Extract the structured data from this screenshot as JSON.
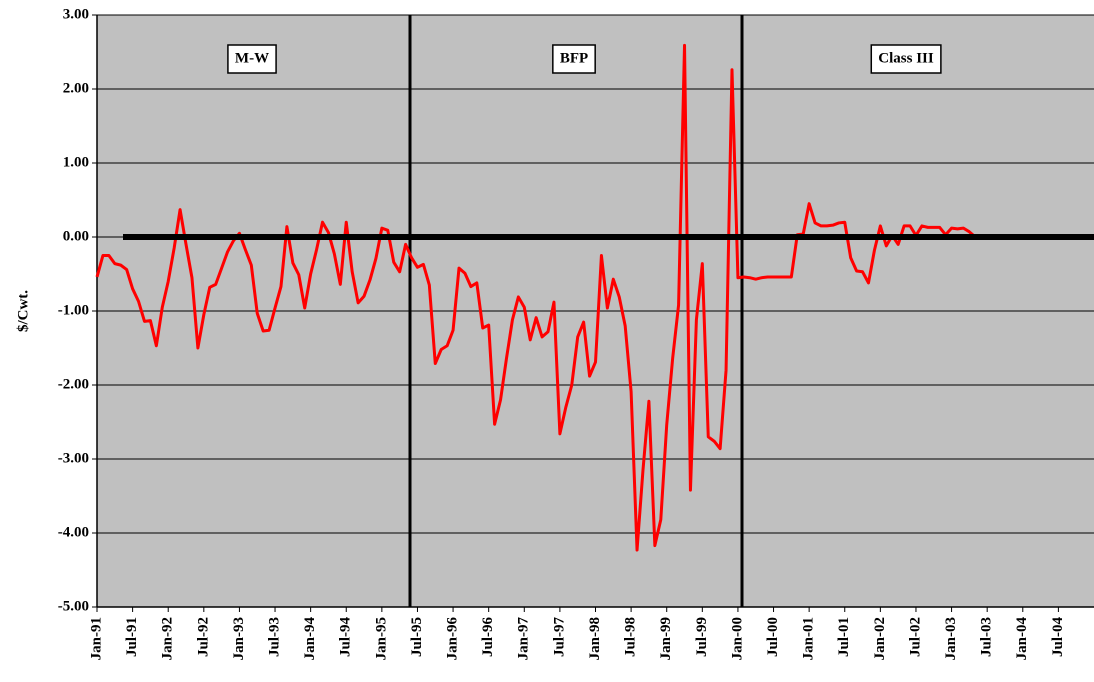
{
  "chart_data": {
    "type": "line",
    "y_label": "$/Cwt.",
    "annotations": [
      "M-W",
      "BFP",
      "Class III"
    ],
    "color": "#ff0000",
    "grid": true,
    "ylim": [
      -5,
      3
    ],
    "yticks": [
      {
        "value": 3,
        "label": "3.00"
      },
      {
        "value": 2,
        "label": "2.00"
      },
      {
        "value": 1,
        "label": "1.00"
      },
      {
        "value": 0,
        "label": "0.00"
      },
      {
        "value": -1,
        "label": "-1.00"
      },
      {
        "value": -2,
        "label": "-2.00"
      },
      {
        "value": -3,
        "label": "-3.00"
      },
      {
        "value": -4,
        "label": "-4.00"
      },
      {
        "value": -5,
        "label": "-5.00"
      }
    ],
    "categories": [
      "Jan-91",
      null,
      null,
      null,
      null,
      null,
      "Jul-91",
      null,
      null,
      null,
      null,
      null,
      "Jan-92",
      null,
      null,
      null,
      null,
      null,
      "Jul-92",
      null,
      null,
      null,
      null,
      null,
      "Jan-93",
      null,
      null,
      null,
      null,
      null,
      "Jul-93",
      null,
      null,
      null,
      null,
      null,
      "Jan-94",
      null,
      null,
      null,
      null,
      null,
      "Jul-94",
      null,
      null,
      null,
      null,
      null,
      "Jan-95",
      null,
      null,
      null,
      null,
      null,
      "Jul-95",
      null,
      null,
      null,
      null,
      null,
      "Jan-96",
      null,
      null,
      null,
      null,
      null,
      "Jul-96",
      null,
      null,
      null,
      null,
      null,
      "Jan-97",
      null,
      null,
      null,
      null,
      null,
      "Jul-97",
      null,
      null,
      null,
      null,
      null,
      "Jan-98",
      null,
      null,
      null,
      null,
      null,
      "Jul-98",
      null,
      null,
      null,
      null,
      null,
      "Jan-99",
      null,
      null,
      null,
      null,
      null,
      "Jul-99",
      null,
      null,
      null,
      null,
      null,
      "Jan-00",
      null,
      null,
      null,
      null,
      null,
      "Jul-00",
      null,
      null,
      null,
      null,
      null,
      "Jan-01",
      null,
      null,
      null,
      null,
      null,
      "Jul-01",
      null,
      null,
      null,
      null,
      null,
      "Jan-02",
      null,
      null,
      null,
      null,
      null,
      "Jul-02",
      null,
      null,
      null,
      null,
      null,
      "Jan-03",
      null,
      null,
      null,
      null,
      null,
      "Jul-03",
      null,
      null,
      null,
      null,
      null,
      "Jan-04",
      null,
      null,
      null,
      null,
      null,
      "Jul-04",
      null,
      null,
      null
    ],
    "values": [
      -0.54,
      -0.25,
      -0.25,
      -0.36,
      -0.38,
      -0.44,
      -0.7,
      -0.87,
      -1.14,
      -1.13,
      -1.47,
      -0.95,
      -0.6,
      -0.15,
      0.37,
      -0.1,
      -0.55,
      -1.5,
      -1.05,
      -0.68,
      -0.64,
      -0.42,
      -0.2,
      -0.05,
      0.05,
      -0.17,
      -0.38,
      -1.03,
      -1.27,
      -1.26,
      -0.96,
      -0.67,
      0.14,
      -0.35,
      -0.51,
      -0.96,
      -0.5,
      -0.17,
      0.2,
      0.06,
      -0.23,
      -0.64,
      0.2,
      -0.47,
      -0.89,
      -0.8,
      -0.58,
      -0.29,
      0.12,
      0.09,
      -0.34,
      -0.47,
      -0.1,
      -0.28,
      -0.41,
      -0.37,
      -0.65,
      -1.71,
      -1.52,
      -1.47,
      -1.26,
      -0.42,
      -0.49,
      -0.67,
      -0.62,
      -1.23,
      -1.19,
      -2.53,
      -2.2,
      -1.64,
      -1.12,
      -0.81,
      -0.95,
      -1.39,
      -1.09,
      -1.35,
      -1.28,
      -0.88,
      -2.66,
      -2.3,
      -2.0,
      -1.35,
      -1.15,
      -1.88,
      -1.69,
      -0.25,
      -0.96,
      -0.57,
      -0.81,
      -1.2,
      -2.09,
      -4.23,
      -3.15,
      -2.22,
      -4.17,
      -3.82,
      -2.54,
      -1.64,
      -0.92,
      2.59,
      -3.42,
      -1.12,
      -0.36,
      -2.7,
      -2.76,
      -2.86,
      -1.8,
      2.26,
      -0.55,
      -0.54,
      -0.55,
      -0.57,
      -0.55,
      -0.54,
      -0.54,
      -0.54,
      -0.54,
      -0.54,
      0.03,
      0.04,
      0.45,
      0.19,
      0.15,
      0.15,
      0.16,
      0.19,
      0.2,
      -0.28,
      -0.46,
      -0.47,
      -0.62,
      -0.18,
      0.15,
      -0.12,
      0.02,
      -0.1,
      0.15,
      0.15,
      0.02,
      0.15,
      0.13,
      0.13,
      0.13,
      0.03,
      0.12,
      0.11,
      0.12,
      0.07,
      0,
      0,
      0,
      0,
      0,
      0,
      0,
      0,
      0,
      0,
      0,
      0,
      0,
      0,
      0,
      0,
      0,
      0
    ]
  }
}
